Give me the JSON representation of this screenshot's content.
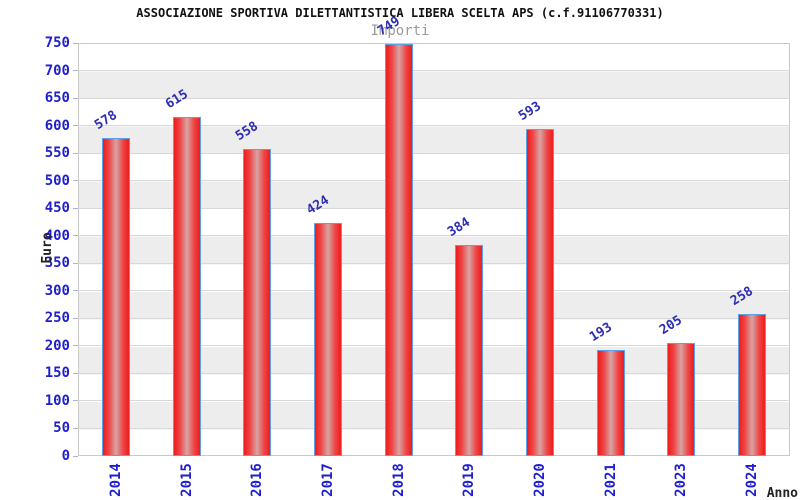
{
  "figure": {
    "title": "ASSOCIAZIONE SPORTIVA DILETTANTISTICA LIBERA SCELTA APS (c.f.91106770331)",
    "subtitle": "Importi"
  },
  "chart_data": {
    "type": "bar",
    "title": "ASSOCIAZIONE SPORTIVA DILETTANTISTICA LIBERA SCELTA APS (c.f.91106770331)",
    "subtitle": "Importi",
    "categories": [
      "2014",
      "2015",
      "2016",
      "2017",
      "2018",
      "2019",
      "2020",
      "2021",
      "2023",
      "2024"
    ],
    "values": [
      578,
      615,
      558,
      424,
      749,
      384,
      593,
      193,
      205,
      258
    ],
    "xlabel": "Anno",
    "ylabel": "Euro",
    "ylim": [
      0,
      750
    ],
    "ytick_step": 50,
    "ytick_labels": [
      "0",
      "50",
      "100",
      "150",
      "200",
      "250",
      "300",
      "350",
      "400",
      "450",
      "500",
      "550",
      "600",
      "650",
      "700",
      "750"
    ],
    "grid": true,
    "legend": "none",
    "colors": {
      "bar_edge": "#ee1c1c",
      "bar_center": "#d8a4a4",
      "bar_border": "#5f9fe8",
      "tick_label": "#1f1fd0",
      "value_label": "#2d2db4",
      "band_gray": "#ededed",
      "grid_line": "#d8d8d8",
      "subtitle_gray": "#999999"
    }
  }
}
